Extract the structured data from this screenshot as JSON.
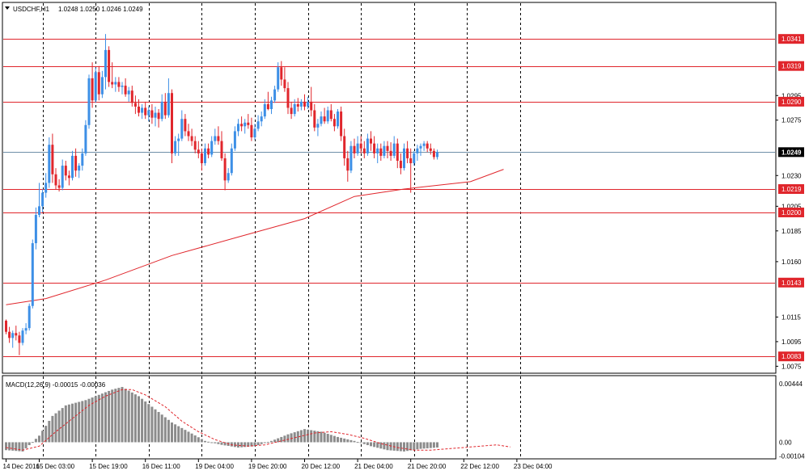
{
  "header": {
    "symbol": "USDCHF,H1",
    "ohlc": "1.0248 1.0250 1.0246 1.0249"
  },
  "macd_header": {
    "label": "MACD(12,26,9) -0.00015 -0.00036"
  },
  "colors": {
    "bull": "#3d8fe6",
    "bear": "#e0262c",
    "level_line": "#e0262c",
    "ma_line": "#e0262c",
    "histogram": "#8c8c8c",
    "signal": "#e0262c",
    "current_price_bg": "#000000"
  },
  "chart_data": [
    {
      "type": "candlestick",
      "title": "USDCHF,H1",
      "ylim": [
        1.007,
        1.037
      ],
      "y_ticks": [
        "1.0075",
        "1.0095",
        "1.0115",
        "1.0160",
        "1.0185",
        "1.0205",
        "1.0230",
        "1.0275",
        "1.0295"
      ],
      "y_tick_values": [
        1.0075,
        1.0095,
        1.0115,
        1.016,
        1.0185,
        1.0205,
        1.023,
        1.0275,
        1.0295
      ],
      "x_ticks": [
        "14 Dec 2016",
        "15 Dec 03:00",
        "15 Dec 19:00",
        "16 Dec 11:00",
        "19 Dec 04:00",
        "19 Dec 20:00",
        "20 Dec 12:00",
        "21 Dec 04:00",
        "21 Dec 20:00",
        "22 Dec 12:00",
        "23 Dec 04:00"
      ],
      "x_tick_index": [
        0,
        10,
        26,
        42,
        58,
        74,
        90,
        106,
        122,
        138,
        154
      ],
      "grid_separator_index": [
        11,
        27,
        43,
        59,
        75,
        91,
        107,
        123,
        139,
        155
      ],
      "price_levels": [
        1.0341,
        1.0319,
        1.029,
        1.0219,
        1.02,
        1.0143,
        1.0083
      ],
      "price_level_labels": [
        "1.0341",
        "1.0319",
        "1.0290",
        "1.0219",
        "1.0200",
        "1.0143",
        "1.0083"
      ],
      "current_price": 1.0249,
      "current_price_label": "1.0249",
      "moving_average": [
        [
          0,
          1.0125
        ],
        [
          12,
          1.013
        ],
        [
          30,
          1.0145
        ],
        [
          50,
          1.0165
        ],
        [
          70,
          1.018
        ],
        [
          90,
          1.0195
        ],
        [
          105,
          1.0213
        ],
        [
          120,
          1.0219
        ],
        [
          140,
          1.0225
        ],
        [
          150,
          1.0235
        ]
      ],
      "candles": [
        [
          1.0112,
          1.0113,
          1.0101,
          1.0103
        ],
        [
          1.0103,
          1.0107,
          1.0094,
          1.0098
        ],
        [
          1.0098,
          1.0104,
          1.009,
          1.0102
        ],
        [
          1.0102,
          1.0108,
          1.0096,
          1.01
        ],
        [
          1.01,
          1.0103,
          1.0084,
          1.0094
        ],
        [
          1.0094,
          1.0106,
          1.0092,
          1.0104
        ],
        [
          1.0104,
          1.011,
          1.0101,
          1.0106
        ],
        [
          1.0106,
          1.0126,
          1.0104,
          1.0124
        ],
        [
          1.0124,
          1.0178,
          1.0122,
          1.0175
        ],
        [
          1.0175,
          1.0204,
          1.017,
          1.0198
        ],
        [
          1.0198,
          1.0224,
          1.0196,
          1.0205
        ],
        [
          1.0205,
          1.0219,
          1.02,
          1.0216
        ],
        [
          1.0216,
          1.0232,
          1.0212,
          1.0224
        ],
        [
          1.0224,
          1.0261,
          1.022,
          1.0255
        ],
        [
          1.0255,
          1.0264,
          1.0224,
          1.0231
        ],
        [
          1.0231,
          1.0236,
          1.0219,
          1.0222
        ],
        [
          1.0222,
          1.0227,
          1.0217,
          1.022
        ],
        [
          1.022,
          1.0243,
          1.0218,
          1.0238
        ],
        [
          1.0238,
          1.0242,
          1.0226,
          1.023
        ],
        [
          1.023,
          1.0234,
          1.0222,
          1.0228
        ],
        [
          1.0228,
          1.025,
          1.0226,
          1.0246
        ],
        [
          1.0246,
          1.0252,
          1.0229,
          1.0234
        ],
        [
          1.0234,
          1.024,
          1.0228,
          1.0238
        ],
        [
          1.0238,
          1.0252,
          1.0234,
          1.0248
        ],
        [
          1.0248,
          1.0275,
          1.0246,
          1.0271
        ],
        [
          1.0271,
          1.0312,
          1.0268,
          1.0309
        ],
        [
          1.0309,
          1.0322,
          1.0285,
          1.0291
        ],
        [
          1.0291,
          1.0318,
          1.0289,
          1.0314
        ],
        [
          1.0314,
          1.0319,
          1.0291,
          1.0296
        ],
        [
          1.0296,
          1.0315,
          1.0293,
          1.031
        ],
        [
          1.031,
          1.0345,
          1.03,
          1.0332
        ],
        [
          1.0332,
          1.0335,
          1.0302,
          1.0306
        ],
        [
          1.0306,
          1.0322,
          1.0301,
          1.0304
        ],
        [
          1.0304,
          1.031,
          1.0298,
          1.0306
        ],
        [
          1.0306,
          1.031,
          1.0298,
          1.0302
        ],
        [
          1.0302,
          1.0306,
          1.0296,
          1.0303
        ],
        [
          1.0303,
          1.0309,
          1.0294,
          1.0296
        ],
        [
          1.0296,
          1.0302,
          1.029,
          1.0299
        ],
        [
          1.0299,
          1.0303,
          1.0286,
          1.0289
        ],
        [
          1.0289,
          1.0295,
          1.028,
          1.0286
        ],
        [
          1.0286,
          1.0292,
          1.0278,
          1.0281
        ],
        [
          1.0281,
          1.0288,
          1.0276,
          1.0285
        ],
        [
          1.0285,
          1.029,
          1.0276,
          1.0279
        ],
        [
          1.0279,
          1.0286,
          1.0274,
          1.0283
        ],
        [
          1.0283,
          1.0288,
          1.0272,
          1.0277
        ],
        [
          1.0277,
          1.0286,
          1.027,
          1.0281
        ],
        [
          1.0281,
          1.0284,
          1.0269,
          1.0276
        ],
        [
          1.0276,
          1.0296,
          1.0274,
          1.029
        ],
        [
          1.029,
          1.0297,
          1.0276,
          1.0279
        ],
        [
          1.0279,
          1.0309,
          1.0277,
          1.0297
        ],
        [
          1.0297,
          1.03,
          1.024,
          1.0248
        ],
        [
          1.0248,
          1.0262,
          1.0246,
          1.0258
        ],
        [
          1.0258,
          1.0264,
          1.0246,
          1.026
        ],
        [
          1.026,
          1.0283,
          1.0258,
          1.0276
        ],
        [
          1.0276,
          1.028,
          1.0262,
          1.0266
        ],
        [
          1.0266,
          1.0272,
          1.0258,
          1.0262
        ],
        [
          1.0262,
          1.0268,
          1.0254,
          1.0258
        ],
        [
          1.0258,
          1.0262,
          1.0248,
          1.0251
        ],
        [
          1.0251,
          1.0258,
          1.0244,
          1.0248
        ],
        [
          1.0248,
          1.0252,
          1.0234,
          1.024
        ],
        [
          1.024,
          1.0256,
          1.0238,
          1.0252
        ],
        [
          1.0252,
          1.0256,
          1.0244,
          1.0247
        ],
        [
          1.0247,
          1.0262,
          1.0245,
          1.0258
        ],
        [
          1.0258,
          1.0268,
          1.0255,
          1.0262
        ],
        [
          1.0262,
          1.027,
          1.0255,
          1.0258
        ],
        [
          1.0258,
          1.0266,
          1.0242,
          1.0244
        ],
        [
          1.0244,
          1.0248,
          1.0218,
          1.0226
        ],
        [
          1.0226,
          1.0236,
          1.0224,
          1.0232
        ],
        [
          1.0232,
          1.0256,
          1.023,
          1.0252
        ],
        [
          1.0252,
          1.027,
          1.025,
          1.0266
        ],
        [
          1.0266,
          1.0276,
          1.0262,
          1.0272
        ],
        [
          1.0272,
          1.0278,
          1.0266,
          1.027
        ],
        [
          1.027,
          1.0276,
          1.0264,
          1.0273
        ],
        [
          1.0273,
          1.028,
          1.0268,
          1.0271
        ],
        [
          1.0271,
          1.0277,
          1.0258,
          1.0261
        ],
        [
          1.0261,
          1.0272,
          1.0259,
          1.0268
        ],
        [
          1.0268,
          1.0279,
          1.0266,
          1.0274
        ],
        [
          1.0274,
          1.0282,
          1.027,
          1.0278
        ],
        [
          1.0278,
          1.0292,
          1.0276,
          1.0288
        ],
        [
          1.0288,
          1.0298,
          1.0283,
          1.0284
        ],
        [
          1.0284,
          1.0294,
          1.028,
          1.0291
        ],
        [
          1.0291,
          1.0303,
          1.0289,
          1.03
        ],
        [
          1.03,
          1.0322,
          1.0298,
          1.0318
        ],
        [
          1.0318,
          1.0323,
          1.0303,
          1.0308
        ],
        [
          1.0308,
          1.0318,
          1.0298,
          1.0301
        ],
        [
          1.0301,
          1.0306,
          1.028,
          1.0285
        ],
        [
          1.0285,
          1.029,
          1.0276,
          1.028
        ],
        [
          1.028,
          1.0292,
          1.0278,
          1.0288
        ],
        [
          1.0288,
          1.0293,
          1.0282,
          1.0286
        ],
        [
          1.0286,
          1.0292,
          1.0283,
          1.029
        ],
        [
          1.029,
          1.0296,
          1.0283,
          1.0286
        ],
        [
          1.0286,
          1.0294,
          1.0284,
          1.029
        ],
        [
          1.029,
          1.0302,
          1.0278,
          1.0283
        ],
        [
          1.0283,
          1.0288,
          1.0266,
          1.0269
        ],
        [
          1.0269,
          1.0276,
          1.0262,
          1.0272
        ],
        [
          1.0272,
          1.0282,
          1.027,
          1.0278
        ],
        [
          1.0278,
          1.0285,
          1.0272,
          1.0274
        ],
        [
          1.0274,
          1.0286,
          1.0272,
          1.0283
        ],
        [
          1.0283,
          1.0288,
          1.0274,
          1.0276
        ],
        [
          1.0276,
          1.028,
          1.0266,
          1.027
        ],
        [
          1.027,
          1.0284,
          1.0268,
          1.0282
        ],
        [
          1.0282,
          1.0286,
          1.0258,
          1.0262
        ],
        [
          1.0262,
          1.0268,
          1.0238,
          1.0244
        ],
        [
          1.0244,
          1.025,
          1.0225,
          1.0234
        ],
        [
          1.0234,
          1.0258,
          1.0232,
          1.0254
        ],
        [
          1.0254,
          1.026,
          1.0244,
          1.0248
        ],
        [
          1.0248,
          1.0262,
          1.0246,
          1.0256
        ],
        [
          1.0256,
          1.0262,
          1.0248,
          1.0252
        ],
        [
          1.0252,
          1.0258,
          1.0244,
          1.0248
        ],
        [
          1.0248,
          1.0264,
          1.0246,
          1.026
        ],
        [
          1.026,
          1.0266,
          1.025,
          1.0256
        ],
        [
          1.0256,
          1.0262,
          1.0244,
          1.0248
        ],
        [
          1.0248,
          1.0256,
          1.024,
          1.0252
        ],
        [
          1.0252,
          1.0256,
          1.0242,
          1.0246
        ],
        [
          1.0246,
          1.0258,
          1.0244,
          1.0254
        ],
        [
          1.0254,
          1.0258,
          1.0244,
          1.025
        ],
        [
          1.025,
          1.0257,
          1.0242,
          1.0246
        ],
        [
          1.0246,
          1.0262,
          1.0244,
          1.0256
        ],
        [
          1.0256,
          1.026,
          1.0236,
          1.0242
        ],
        [
          1.0242,
          1.0248,
          1.0231,
          1.0236
        ],
        [
          1.0236,
          1.0256,
          1.0234,
          1.0252
        ],
        [
          1.0252,
          1.0258,
          1.024,
          1.0244
        ],
        [
          1.0244,
          1.0252,
          1.0216,
          1.024
        ],
        [
          1.024,
          1.025,
          1.0238,
          1.0248
        ],
        [
          1.0248,
          1.0255,
          1.0242,
          1.0252
        ],
        [
          1.0252,
          1.0256,
          1.0246,
          1.0254
        ],
        [
          1.0254,
          1.0258,
          1.025,
          1.0256
        ],
        [
          1.0256,
          1.0258,
          1.0249,
          1.0252
        ],
        [
          1.0252,
          1.0256,
          1.0247,
          1.025
        ],
        [
          1.025,
          1.0252,
          1.0243,
          1.0245
        ],
        [
          1.0245,
          1.0251,
          1.0243,
          1.0249
        ]
      ]
    },
    {
      "type": "histogram",
      "title": "MACD(12,26,9)",
      "ylim": [
        -0.0012,
        0.005
      ],
      "y_ticks": [
        "0.00444",
        "0.00",
        "-0.00104"
      ],
      "y_tick_values": [
        0.00444,
        0.0,
        -0.00104
      ],
      "histogram": [
        [
          0,
          -0.0006
        ],
        [
          5,
          -0.0007
        ],
        [
          10,
          0.0005
        ],
        [
          14,
          0.002
        ],
        [
          18,
          0.0028
        ],
        [
          24,
          0.0032
        ],
        [
          28,
          0.0036
        ],
        [
          32,
          0.004
        ],
        [
          35,
          0.0042
        ],
        [
          40,
          0.0035
        ],
        [
          45,
          0.0025
        ],
        [
          50,
          0.0015
        ],
        [
          55,
          0.0008
        ],
        [
          60,
          0.0001
        ],
        [
          65,
          -0.0002
        ],
        [
          70,
          -0.0004
        ],
        [
          75,
          -0.0003
        ],
        [
          80,
          0.0001
        ],
        [
          85,
          0.0006
        ],
        [
          90,
          0.001
        ],
        [
          95,
          0.0008
        ],
        [
          100,
          0.0004
        ],
        [
          105,
          0.0001
        ],
        [
          110,
          -0.0003
        ],
        [
          115,
          -0.0006
        ],
        [
          120,
          -0.0007
        ],
        [
          125,
          -0.0005
        ],
        [
          130,
          -0.0004
        ],
        [
          135,
          -0.0003
        ],
        [
          140,
          -0.0002
        ],
        [
          145,
          -0.00015
        ],
        [
          150,
          -0.00015
        ]
      ],
      "signal": [
        [
          0,
          -0.0004
        ],
        [
          5,
          -0.0006
        ],
        [
          10,
          -0.0003
        ],
        [
          15,
          0.0008
        ],
        [
          20,
          0.0018
        ],
        [
          25,
          0.0028
        ],
        [
          30,
          0.0035
        ],
        [
          35,
          0.004
        ],
        [
          38,
          0.004
        ],
        [
          42,
          0.0036
        ],
        [
          48,
          0.0027
        ],
        [
          53,
          0.0016
        ],
        [
          58,
          0.0008
        ],
        [
          63,
          0.0002
        ],
        [
          68,
          -0.0002
        ],
        [
          73,
          -0.0003
        ],
        [
          78,
          -0.0002
        ],
        [
          83,
          0.0001
        ],
        [
          88,
          0.0004
        ],
        [
          93,
          0.0007
        ],
        [
          98,
          0.0008
        ],
        [
          103,
          0.0006
        ],
        [
          108,
          0.0003
        ],
        [
          113,
          -0.0001
        ],
        [
          118,
          -0.0004
        ],
        [
          123,
          -0.0006
        ],
        [
          128,
          -0.0006
        ],
        [
          133,
          -0.0005
        ],
        [
          138,
          -0.0004
        ],
        [
          143,
          -0.0003
        ],
        [
          148,
          -0.0002
        ],
        [
          152,
          -0.00036
        ]
      ]
    }
  ]
}
